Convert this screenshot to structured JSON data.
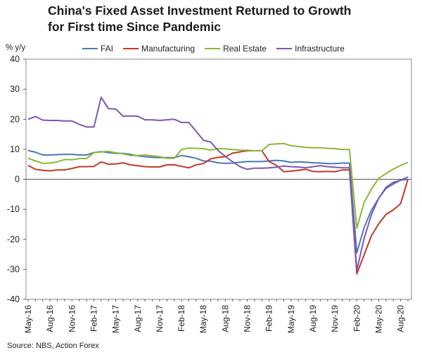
{
  "chart_data": {
    "type": "line",
    "title_line1": "China's Fixed Asset Investment Returned to Growth",
    "title_line2": "for First time Since Pandemic",
    "ylabel": "% y/y",
    "source": "Source: NBS, Action Forex",
    "ylim": [
      -40,
      40
    ],
    "yticks": [
      -40,
      -30,
      -20,
      -10,
      0,
      10,
      20,
      30,
      40
    ],
    "x": [
      "May-16",
      "Jun-16",
      "Jul-16",
      "Aug-16",
      "Sep-16",
      "Oct-16",
      "Nov-16",
      "Dec-16",
      "Jan-17",
      "Feb-17",
      "Mar-17",
      "Apr-17",
      "May-17",
      "Jun-17",
      "Jul-17",
      "Aug-17",
      "Sep-17",
      "Oct-17",
      "Nov-17",
      "Dec-17",
      "Jan-18",
      "Feb-18",
      "Mar-18",
      "Apr-18",
      "May-18",
      "Jun-18",
      "Jul-18",
      "Aug-18",
      "Sep-18",
      "Oct-18",
      "Nov-18",
      "Dec-18",
      "Jan-19",
      "Feb-19",
      "Mar-19",
      "Apr-19",
      "May-19",
      "Jun-19",
      "Jul-19",
      "Aug-19",
      "Sep-19",
      "Oct-19",
      "Nov-19",
      "Dec-19",
      "Jan-20",
      "Feb-20",
      "Mar-20",
      "Apr-20",
      "May-20",
      "Jun-20",
      "Jul-20",
      "Aug-20",
      "Sep-20"
    ],
    "xticklabels": [
      "May-16",
      "Aug-16",
      "Nov-16",
      "Feb-17",
      "May-17",
      "Aug-17",
      "Nov-17",
      "Feb-18",
      "May-18",
      "Aug-18",
      "Nov-18",
      "Feb-19",
      "May-19",
      "Aug-19",
      "Nov-19",
      "Feb-20",
      "May-20",
      "Aug-20"
    ],
    "series": [
      {
        "name": "FAI",
        "color": "#4a7ab5",
        "values": [
          9.6,
          9.0,
          8.1,
          8.1,
          8.2,
          8.3,
          8.3,
          8.1,
          8.1,
          8.9,
          9.2,
          8.9,
          8.6,
          8.6,
          8.3,
          7.8,
          7.5,
          7.3,
          7.2,
          7.2,
          7.2,
          7.9,
          7.5,
          7.0,
          6.1,
          6.0,
          5.5,
          5.3,
          5.4,
          5.7,
          5.9,
          5.9,
          5.9,
          6.1,
          6.3,
          6.1,
          5.6,
          5.8,
          5.7,
          5.5,
          5.4,
          5.2,
          5.2,
          5.4,
          5.4,
          -24.5,
          -16.1,
          -10.3,
          -6.3,
          -3.1,
          -1.6,
          -0.3,
          0.8
        ]
      },
      {
        "name": "Manufacturing",
        "color": "#c0392b",
        "values": [
          4.6,
          3.3,
          3.0,
          2.8,
          3.1,
          3.1,
          3.6,
          4.2,
          4.2,
          4.3,
          5.8,
          5.0,
          5.1,
          5.5,
          4.8,
          4.5,
          4.2,
          4.1,
          4.1,
          4.8,
          4.8,
          4.3,
          3.8,
          4.8,
          5.2,
          6.8,
          7.3,
          7.5,
          8.7,
          9.1,
          9.5,
          9.5,
          9.5,
          5.9,
          4.6,
          2.5,
          2.7,
          3.0,
          3.3,
          2.6,
          2.5,
          2.6,
          2.5,
          3.1,
          3.1,
          -31.5,
          -25.2,
          -18.8,
          -14.8,
          -11.7,
          -10.2,
          -8.1,
          0
        ]
      },
      {
        "name": "Real Estate",
        "color": "#8ab835",
        "values": [
          7.0,
          6.1,
          5.3,
          5.4,
          5.8,
          6.6,
          6.5,
          6.9,
          6.9,
          8.9,
          9.1,
          9.3,
          8.8,
          8.5,
          7.9,
          7.9,
          8.1,
          7.8,
          7.5,
          7.0,
          7.0,
          9.9,
          10.4,
          10.3,
          10.2,
          9.7,
          10.2,
          10.1,
          9.9,
          9.7,
          9.7,
          9.5,
          9.5,
          11.6,
          11.8,
          11.9,
          11.2,
          10.9,
          10.6,
          10.5,
          10.5,
          10.3,
          10.2,
          9.9,
          9.9,
          -16.3,
          -7.7,
          -3.3,
          0.3,
          1.9,
          3.4,
          4.6,
          5.6
        ]
      },
      {
        "name": "Infrastructure",
        "color": "#7b57b5",
        "values": [
          20.0,
          20.9,
          19.7,
          19.6,
          19.6,
          19.4,
          19.4,
          18.3,
          17.4,
          17.4,
          27.3,
          23.5,
          23.4,
          21.0,
          21.1,
          21.0,
          19.8,
          19.8,
          19.6,
          19.8,
          20.0,
          18.9,
          18.9,
          16.0,
          13.0,
          12.4,
          9.6,
          7.6,
          5.8,
          4.2,
          3.3,
          3.7,
          3.7,
          3.8,
          4.0,
          4.4,
          4.2,
          4.1,
          3.8,
          4.2,
          4.5,
          4.2,
          4.0,
          3.8,
          3.8,
          -30.3,
          -19.7,
          -11.8,
          -6.3,
          -2.7,
          -1.0,
          -0.3,
          0
        ]
      }
    ],
    "legend": [
      "FAI",
      "Manufacturing",
      "Real Estate",
      "Infrastructure"
    ]
  }
}
